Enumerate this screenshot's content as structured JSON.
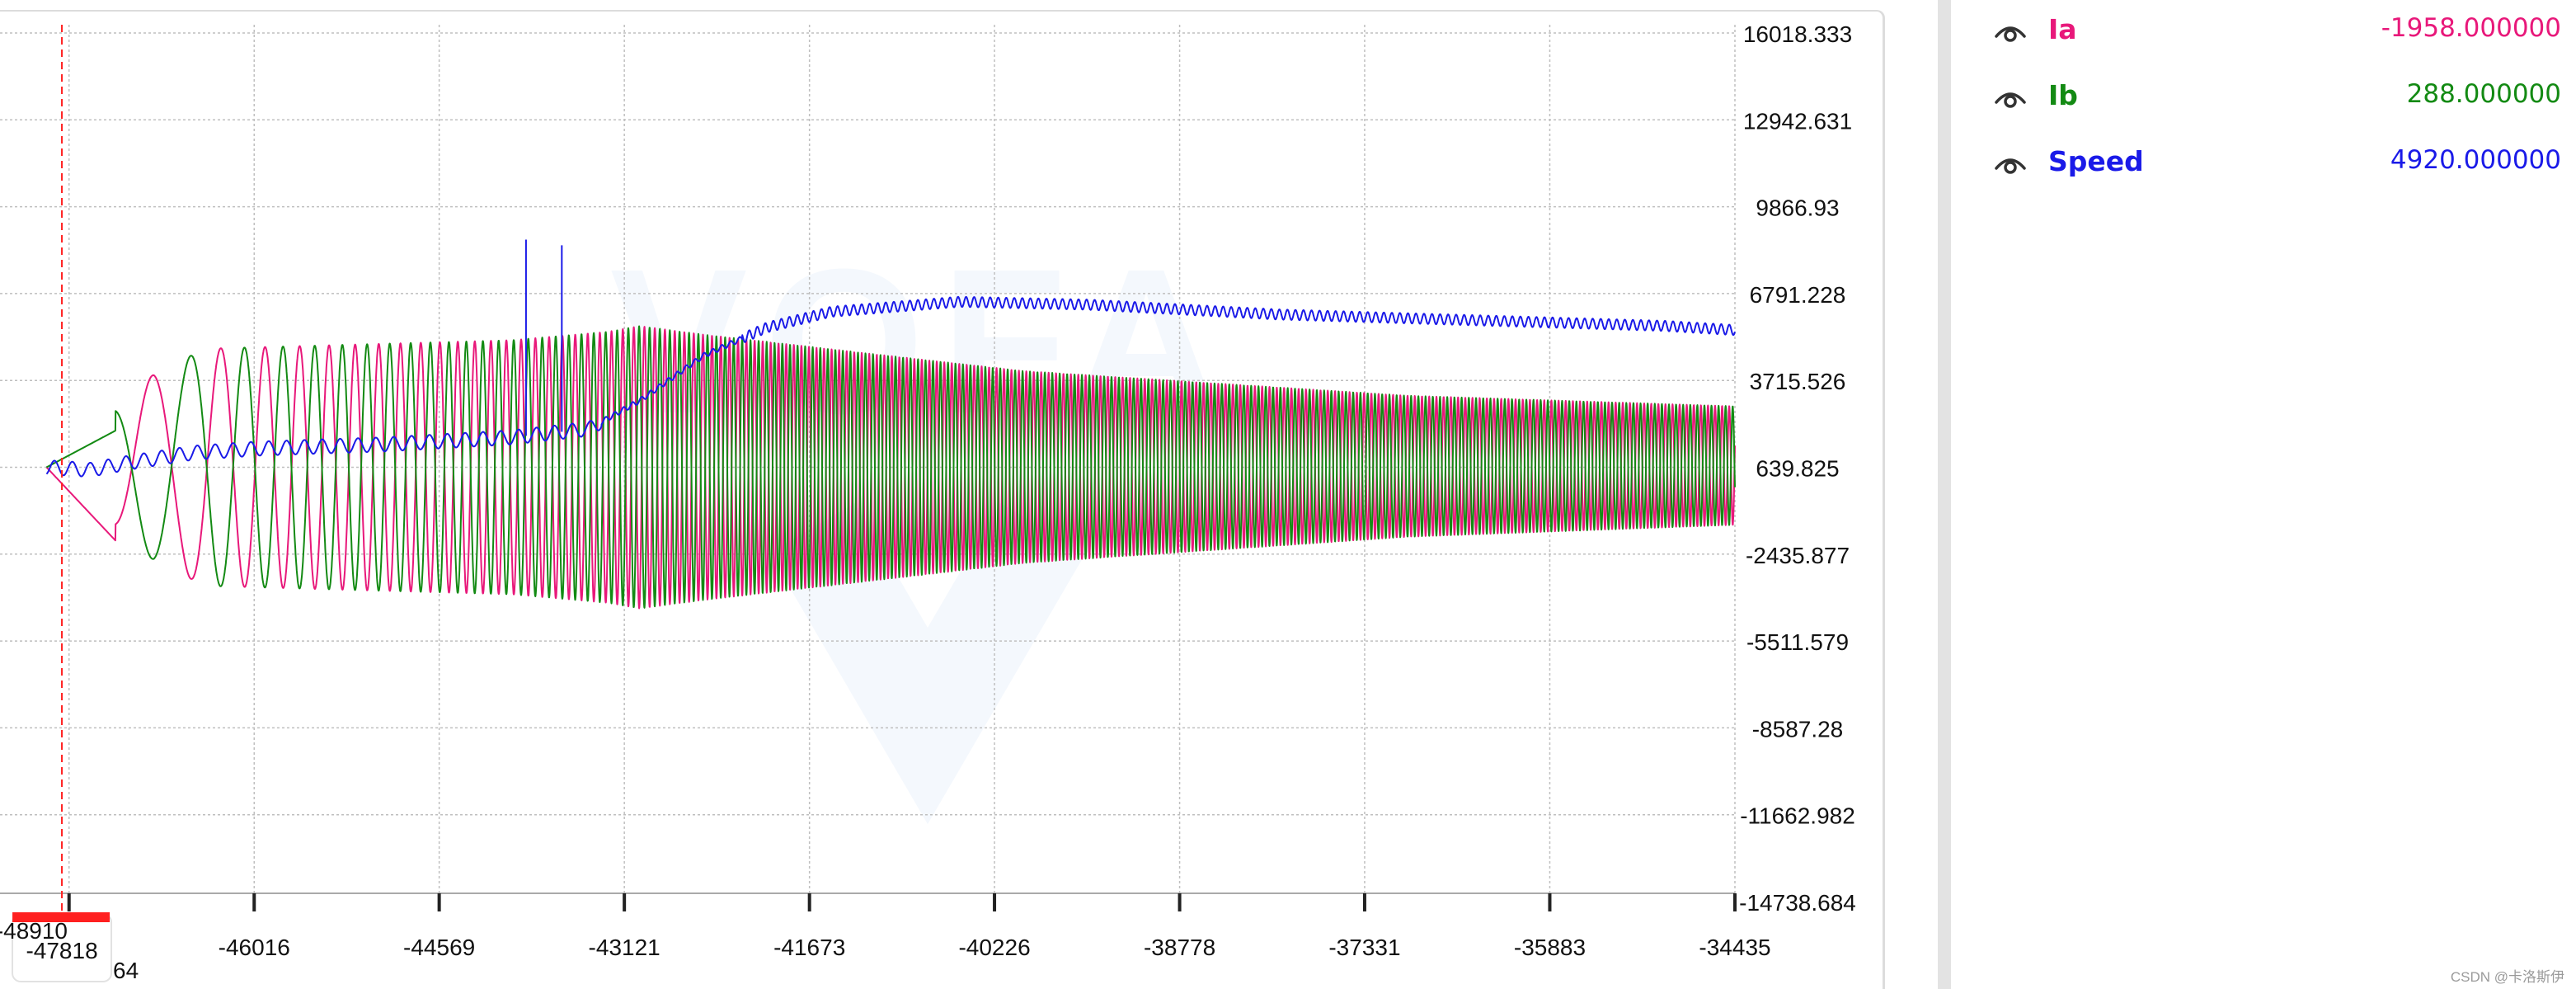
{
  "legend": {
    "items": [
      {
        "name": "Ia",
        "value": "-1958.000000",
        "color": "#e8187a",
        "icon": "eye-icon"
      },
      {
        "name": "Ib",
        "value": "288.000000",
        "color": "#138a13",
        "icon": "eye-icon"
      },
      {
        "name": "Speed",
        "value": "4920.000000",
        "color": "#1a1ae8",
        "icon": "eye-icon"
      }
    ]
  },
  "watermark": "VOFA",
  "credit": "CSDN @卡洛斯伊",
  "cursor": {
    "x": -47520,
    "label": "-47818",
    "left_label": "-48910",
    "partial_label": "64",
    "color": "#ff2020"
  },
  "chart_data": {
    "type": "line",
    "title": "",
    "xlabel": "",
    "ylabel": "",
    "grid": true,
    "xlim": [
      -48004,
      -34435
    ],
    "ylim": [
      -14738.684,
      16018.333
    ],
    "x_ticks": [
      -47464,
      -46016,
      -44569,
      -43121,
      -41673,
      -40226,
      -38778,
      -37331,
      -35883,
      -34435
    ],
    "x_tick_labels": [
      "",
      "-46016",
      "-44569",
      "-43121",
      "-41673",
      "-40226",
      "-38778",
      "-37331",
      "-35883",
      "-34435"
    ],
    "y_ticks": [
      16018.333,
      12942.631,
      9866.93,
      6791.228,
      3715.526,
      639.825,
      -2435.877,
      -5511.579,
      -8587.28,
      -11662.982,
      -14738.684
    ],
    "y_tick_labels": [
      "16018.333",
      "12942.631",
      "9866.93",
      "6791.228",
      "3715.526",
      "639.825",
      "-2435.877",
      "-5511.579",
      "-8587.28",
      "-11662.982",
      "-14738.684"
    ],
    "series": [
      {
        "name": "Ia",
        "color": "#e8187a",
        "kind": "phase_current",
        "x_start": -47640,
        "x_end": -34435,
        "phase": 0,
        "description_points": {
          "start_value": 639.825,
          "early_dip": {
            "x": -47000,
            "y": -2400
          },
          "mid_amplitude": 4400,
          "peak_envelope": {
            "x": -43000,
            "upper": 5100,
            "lower": -4900
          },
          "end_envelope": {
            "upper": 2800,
            "lower": -1400
          }
        }
      },
      {
        "name": "Ib",
        "color": "#138a13",
        "kind": "phase_current",
        "x_start": -47640,
        "x_end": -34435,
        "phase": 1.5708,
        "description_points": {
          "start_value": 639.825,
          "early_rise": {
            "x": -47130,
            "y": 1900
          },
          "mid_amplitude": 4400,
          "peak_envelope": {
            "x": -43000,
            "upper": 5200,
            "lower": -4800
          },
          "end_envelope": {
            "upper": 2800,
            "lower": -1400
          }
        }
      },
      {
        "name": "Speed",
        "color": "#1a1ae8",
        "kind": "speed",
        "x_start": -47640,
        "x_end": -34435,
        "profile": [
          [
            -47640,
            639.8
          ],
          [
            -47300,
            550
          ],
          [
            -47000,
            800
          ],
          [
            -46500,
            1150
          ],
          [
            -46000,
            1300
          ],
          [
            -45000,
            1450
          ],
          [
            -44000,
            1700
          ],
          [
            -43400,
            2000
          ],
          [
            -43000,
            3000
          ],
          [
            -42500,
            4600
          ],
          [
            -42000,
            5600
          ],
          [
            -41500,
            6150
          ],
          [
            -40500,
            6500
          ],
          [
            -39500,
            6400
          ],
          [
            -38000,
            6050
          ],
          [
            -36500,
            5850
          ],
          [
            -35000,
            5650
          ],
          [
            -34435,
            5500
          ]
        ],
        "spikes": [
          {
            "x": -43890,
            "y": 8700
          },
          {
            "x": -43610,
            "y": 8500
          }
        ]
      }
    ]
  }
}
